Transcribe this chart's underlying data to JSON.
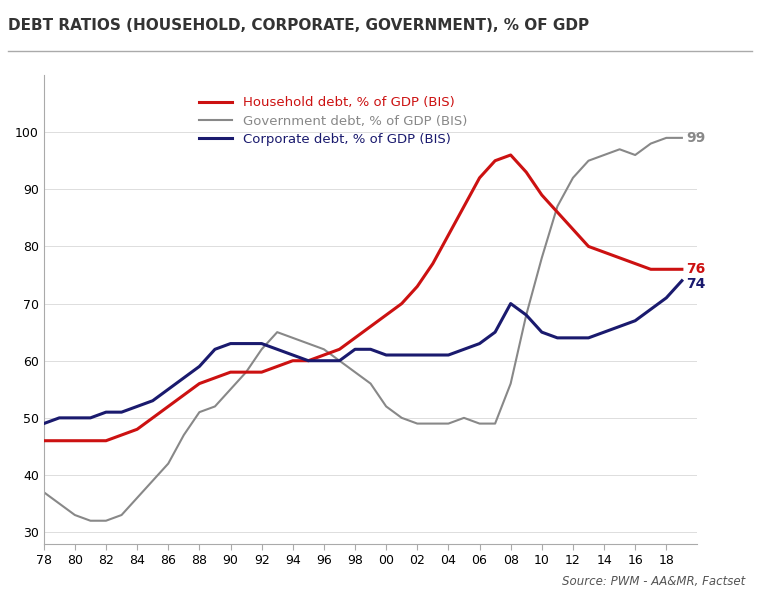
{
  "title": "DEBT RATIOS (HOUSEHOLD, CORPORATE, GOVERNMENT), % OF GDP",
  "source": "Source: PWM - AA&MR, Factset",
  "xlabel": "",
  "ylabel": "",
  "xlim": [
    1978,
    2020
  ],
  "ylim": [
    28,
    110
  ],
  "yticks": [
    30,
    40,
    50,
    60,
    70,
    80,
    90,
    100
  ],
  "xtick_labels": [
    "78",
    "80",
    "82",
    "84",
    "86",
    "88",
    "90",
    "92",
    "94",
    "96",
    "98",
    "00",
    "02",
    "04",
    "06",
    "08",
    "10",
    "12",
    "14",
    "16",
    "18"
  ],
  "xtick_values": [
    1978,
    1980,
    1982,
    1984,
    1986,
    1988,
    1990,
    1992,
    1994,
    1996,
    1998,
    2000,
    2002,
    2004,
    2006,
    2008,
    2010,
    2012,
    2014,
    2016,
    2018
  ],
  "household_color": "#cc1111",
  "government_color": "#888888",
  "corporate_color": "#1a1a6e",
  "household_label": "Household debt, % of GDP (BIS)",
  "government_label": "Government debt, % of GDP (BIS)",
  "corporate_label": "Corporate debt, % of GDP (BIS)",
  "end_labels": [
    {
      "text": "99",
      "color": "#888888",
      "y": 99
    },
    {
      "text": "76",
      "color": "#cc1111",
      "y": 76
    },
    {
      "text": "74",
      "color": "#1a1a6e",
      "y": 74
    }
  ],
  "household_x": [
    1978,
    1979,
    1980,
    1981,
    1982,
    1983,
    1984,
    1985,
    1986,
    1987,
    1988,
    1989,
    1990,
    1991,
    1992,
    1993,
    1994,
    1995,
    1996,
    1997,
    1998,
    1999,
    2000,
    2001,
    2002,
    2003,
    2004,
    2005,
    2006,
    2007,
    2008,
    2009,
    2010,
    2011,
    2012,
    2013,
    2014,
    2015,
    2016,
    2017,
    2018,
    2019
  ],
  "household_y": [
    46,
    46,
    46,
    46,
    46,
    47,
    48,
    50,
    52,
    54,
    56,
    57,
    58,
    58,
    58,
    59,
    60,
    60,
    61,
    62,
    64,
    66,
    68,
    70,
    73,
    77,
    82,
    87,
    92,
    95,
    96,
    93,
    89,
    86,
    83,
    80,
    79,
    78,
    77,
    76,
    76,
    76
  ],
  "government_x": [
    1978,
    1979,
    1980,
    1981,
    1982,
    1983,
    1984,
    1985,
    1986,
    1987,
    1988,
    1989,
    1990,
    1991,
    1992,
    1993,
    1994,
    1995,
    1996,
    1997,
    1998,
    1999,
    2000,
    2001,
    2002,
    2003,
    2004,
    2005,
    2006,
    2007,
    2008,
    2009,
    2010,
    2011,
    2012,
    2013,
    2014,
    2015,
    2016,
    2017,
    2018,
    2019
  ],
  "government_y": [
    37,
    35,
    33,
    32,
    32,
    33,
    36,
    39,
    42,
    47,
    51,
    52,
    55,
    58,
    62,
    65,
    64,
    63,
    62,
    60,
    58,
    56,
    52,
    50,
    49,
    49,
    49,
    50,
    49,
    49,
    56,
    68,
    78,
    87,
    92,
    95,
    96,
    97,
    96,
    98,
    99,
    99
  ],
  "corporate_x": [
    1978,
    1979,
    1980,
    1981,
    1982,
    1983,
    1984,
    1985,
    1986,
    1987,
    1988,
    1989,
    1990,
    1991,
    1992,
    1993,
    1994,
    1995,
    1996,
    1997,
    1998,
    1999,
    2000,
    2001,
    2002,
    2003,
    2004,
    2005,
    2006,
    2007,
    2008,
    2009,
    2010,
    2011,
    2012,
    2013,
    2014,
    2015,
    2016,
    2017,
    2018,
    2019
  ],
  "corporate_y": [
    49,
    50,
    50,
    50,
    51,
    51,
    52,
    53,
    55,
    57,
    59,
    62,
    63,
    63,
    63,
    62,
    61,
    60,
    60,
    60,
    62,
    62,
    61,
    61,
    61,
    61,
    61,
    62,
    63,
    65,
    70,
    68,
    65,
    64,
    64,
    64,
    65,
    66,
    67,
    69,
    71,
    74
  ]
}
